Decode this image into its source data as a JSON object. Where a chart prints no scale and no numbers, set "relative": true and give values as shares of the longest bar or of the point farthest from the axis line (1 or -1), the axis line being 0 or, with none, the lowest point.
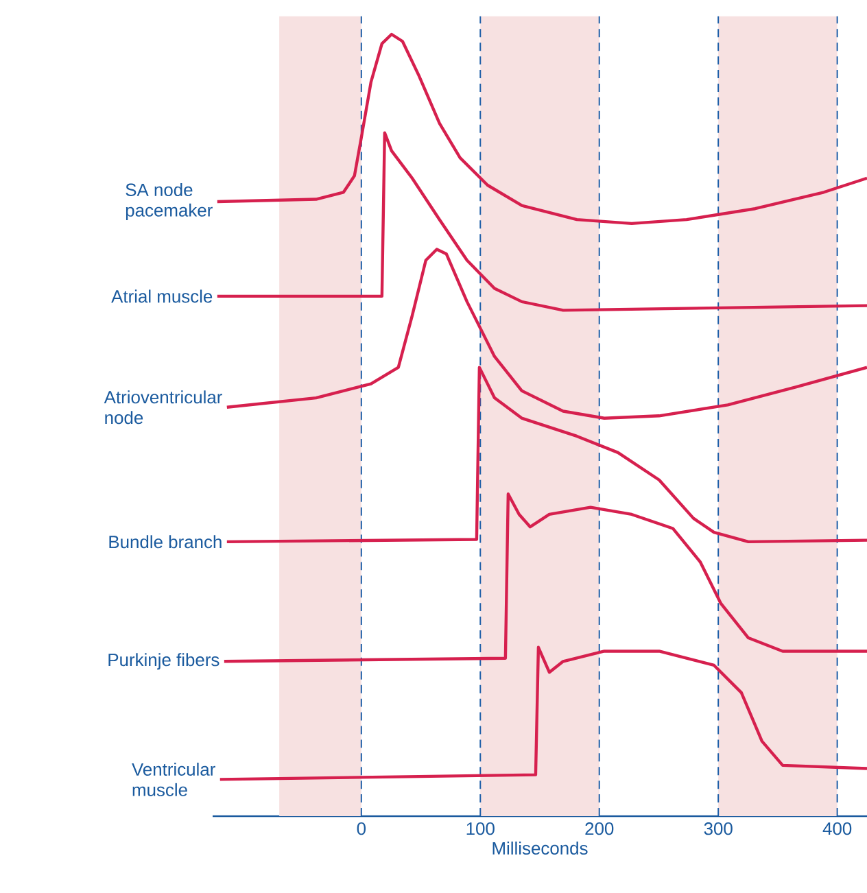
{
  "chart_data": {
    "type": "line",
    "relative": true,
    "xlabel": "Milliseconds",
    "line_style": "solid",
    "xlim": [
      -125,
      425
    ],
    "xticks": [
      0,
      100,
      200,
      300,
      400
    ],
    "series": [
      {
        "name": "SA node pacemaker",
        "color": "#d6204e",
        "x": [
          -121.1,
          -38.1,
          -15.0,
          -5.8,
          0,
          8.1,
          17.3,
          25.4,
          34.6,
          48.4,
          65.7,
          83.0,
          106.1,
          134.9,
          181.1,
          227.2,
          273.4,
          331.0,
          388.7,
          425
        ],
        "values": [
          0.786,
          0.789,
          0.798,
          0.819,
          0.868,
          0.939,
          0.988,
          1.0,
          0.991,
          0.947,
          0.886,
          0.842,
          0.807,
          0.781,
          0.763,
          0.758,
          0.763,
          0.777,
          0.798,
          0.816
        ]
      },
      {
        "name": "Atrial muscle",
        "color": "#d6204e",
        "x": [
          -121.1,
          17.3,
          19.6,
          25.4,
          42.7,
          65.7,
          88.8,
          111.9,
          134.9,
          169.6,
          425
        ],
        "values": [
          0.665,
          0.665,
          0.874,
          0.851,
          0.816,
          0.763,
          0.711,
          0.675,
          0.658,
          0.647,
          0.653
        ]
      },
      {
        "name": "Atrioventricular node",
        "color": "#d6204e",
        "x": [
          -113.0,
          -38.1,
          8.1,
          31.1,
          42.7,
          54.2,
          63.4,
          71.5,
          88.8,
          111.9,
          134.9,
          169.6,
          204.2,
          250.3,
          308.0,
          365.6,
          425
        ],
        "values": [
          0.523,
          0.535,
          0.553,
          0.574,
          0.64,
          0.711,
          0.725,
          0.719,
          0.658,
          0.588,
          0.544,
          0.518,
          0.509,
          0.512,
          0.526,
          0.549,
          0.574
        ]
      },
      {
        "name": "Bundle branch",
        "color": "#d6204e",
        "x": [
          -113.0,
          96.9,
          99.2,
          111.9,
          134.9,
          181.1,
          215.7,
          250.3,
          279.1,
          296.4,
          325.3,
          425
        ],
        "values": [
          0.351,
          0.354,
          0.574,
          0.535,
          0.509,
          0.486,
          0.465,
          0.43,
          0.381,
          0.363,
          0.351,
          0.353
        ]
      },
      {
        "name": "Purkinje fibers",
        "color": "#d6204e",
        "x": [
          -115.3,
          121.1,
          123.4,
          132.6,
          141.9,
          158.0,
          192.6,
          227.2,
          261.8,
          284.9,
          302.2,
          325.3,
          354.1,
          425
        ],
        "values": [
          0.198,
          0.202,
          0.412,
          0.386,
          0.37,
          0.386,
          0.395,
          0.386,
          0.368,
          0.325,
          0.272,
          0.228,
          0.211,
          0.211
        ]
      },
      {
        "name": "Ventricular muscle",
        "color": "#d6204e",
        "x": [
          -118.8,
          146.5,
          148.8,
          158.0,
          169.6,
          204.2,
          250.3,
          296.4,
          319.4,
          336.7,
          354.1,
          425
        ],
        "values": [
          0.047,
          0.053,
          0.216,
          0.184,
          0.198,
          0.211,
          0.211,
          0.193,
          0.158,
          0.096,
          0.065,
          0.061
        ]
      }
    ],
    "ref_lines": [
      {
        "axis": "x",
        "value": 0,
        "color": "#1f5fa8",
        "line_style": "dashed"
      },
      {
        "axis": "x",
        "value": 100,
        "color": "#1f5fa8",
        "line_style": "dashed"
      },
      {
        "axis": "x",
        "value": 200,
        "color": "#1f5fa8",
        "line_style": "dashed"
      },
      {
        "axis": "x",
        "value": 300,
        "color": "#1f5fa8",
        "line_style": "dashed"
      },
      {
        "axis": "x",
        "value": 400,
        "color": "#1f5fa8",
        "line_style": "dashed"
      }
    ],
    "bands": [
      {
        "axis": "x",
        "from": -69,
        "to": 0,
        "color": "#f7e1e1"
      },
      {
        "axis": "x",
        "from": 100,
        "to": 200,
        "color": "#f7e1e1"
      },
      {
        "axis": "x",
        "from": 300,
        "to": 400,
        "color": "#f7e1e1"
      }
    ]
  }
}
